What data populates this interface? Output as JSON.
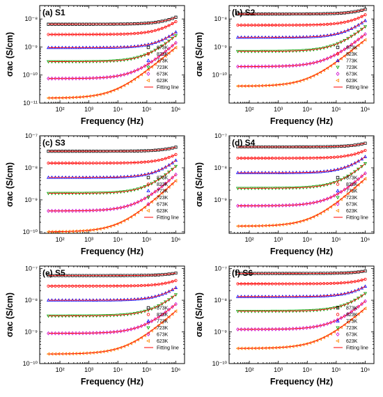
{
  "chart_data": [
    {
      "type": "scatter",
      "panel_label": "(a)  S1",
      "xlabel": "Frequency (Hz)",
      "ylabel": "σac (S/cm)",
      "xscale": "log",
      "yscale": "log",
      "xlim": [
        20,
        2000000
      ],
      "ylim": [
        1e-11,
        3e-08
      ],
      "xticks": [
        "10²",
        "10³",
        "10⁴",
        "10⁵",
        "10⁶"
      ],
      "yticks": [
        {
          "v": 1e-11,
          "t": "10⁻¹¹"
        },
        {
          "v": 1e-10,
          "t": "10⁻¹⁰"
        },
        {
          "v": 1e-09,
          "t": "10⁻⁹"
        },
        {
          "v": 1e-08,
          "t": "10⁻⁸"
        }
      ],
      "legend_position": "right",
      "series": [
        {
          "name": "873K",
          "sdc": 6.5e-09,
          "A": 1e-14,
          "n": 0.95
        },
        {
          "name": "823K",
          "sdc": 2.8e-09,
          "A": 9e-15,
          "n": 0.96
        },
        {
          "name": "773K",
          "sdc": 9.5e-10,
          "A": 3.2e-15,
          "n": 0.98
        },
        {
          "name": "723K",
          "sdc": 3e-10,
          "A": 4.5e-15,
          "n": 0.95
        },
        {
          "name": "673K",
          "sdc": 7.5e-11,
          "A": 3.5e-15,
          "n": 0.93
        },
        {
          "name": "623K",
          "sdc": 1.5e-11,
          "A": 6.5e-15,
          "n": 0.86
        }
      ],
      "fit_label": "Fitting line"
    },
    {
      "type": "scatter",
      "panel_label": "(b)  S2",
      "xlabel": "Frequency (Hz)",
      "ylabel": "σac (S/cm)",
      "xscale": "log",
      "yscale": "log",
      "xlim": [
        20,
        2000000
      ],
      "ylim": [
        1e-11,
        3e-08
      ],
      "xticks": [
        "10²",
        "10³",
        "10⁴",
        "10⁵",
        "10⁶"
      ],
      "yticks": [
        {
          "v": 1e-10,
          "t": "10⁻¹⁰"
        },
        {
          "v": 1e-09,
          "t": "10⁻⁹"
        },
        {
          "v": 1e-08,
          "t": "10⁻⁸"
        }
      ],
      "legend_position": "right",
      "series": [
        {
          "name": "873K",
          "sdc": 1.5e-08,
          "A": 1.4e-14,
          "n": 0.95
        },
        {
          "name": "823K",
          "sdc": 6e-09,
          "A": 1.4e-14,
          "n": 0.96
        },
        {
          "name": "773K",
          "sdc": 2.2e-09,
          "A": 1.3e-14,
          "n": 0.95
        },
        {
          "name": "723K",
          "sdc": 7e-10,
          "A": 1.6e-14,
          "n": 0.91
        },
        {
          "name": "673K",
          "sdc": 2e-10,
          "A": 1.4e-14,
          "n": 0.88
        },
        {
          "name": "623K",
          "sdc": 4e-11,
          "A": 1.4e-14,
          "n": 0.85
        }
      ],
      "fit_label": "Fitting line"
    },
    {
      "type": "scatter",
      "panel_label": "(c)  S3",
      "xlabel": "Frequency (Hz)",
      "ylabel": "σac (S/cm)",
      "xscale": "log",
      "yscale": "log",
      "xlim": [
        20,
        2000000
      ],
      "ylim": [
        9e-11,
        1e-07
      ],
      "xticks": [
        "10²",
        "10³",
        "10⁴",
        "10⁵",
        "10⁶"
      ],
      "yticks": [
        {
          "v": 1e-10,
          "t": "10⁻¹⁰"
        },
        {
          "v": 1e-09,
          "t": "10⁻⁹"
        },
        {
          "v": 1e-08,
          "t": "10⁻⁸"
        },
        {
          "v": 1e-07,
          "t": "10⁻⁷"
        }
      ],
      "legend_position": "right",
      "series": [
        {
          "name": "873K",
          "sdc": 3.3e-08,
          "A": 2.2e-14,
          "n": 0.95
        },
        {
          "name": "823K",
          "sdc": 1.4e-08,
          "A": 2.4e-14,
          "n": 0.95
        },
        {
          "name": "773K",
          "sdc": 5e-09,
          "A": 2.4e-14,
          "n": 0.95
        },
        {
          "name": "723K",
          "sdc": 1.6e-09,
          "A": 2.9e-14,
          "n": 0.92
        },
        {
          "name": "673K",
          "sdc": 4.5e-10,
          "A": 3e-14,
          "n": 0.88
        },
        {
          "name": "623K",
          "sdc": 1e-10,
          "A": 3.5e-14,
          "n": 0.84
        }
      ],
      "fit_label": "Fitting line"
    },
    {
      "type": "scatter",
      "panel_label": "(d)  S4",
      "xlabel": "Frequency (Hz)",
      "ylabel": "σac (S/cm)",
      "xscale": "log",
      "yscale": "log",
      "xlim": [
        20,
        2000000
      ],
      "ylim": [
        9e-11,
        1e-07
      ],
      "xticks": [
        "10²",
        "10³",
        "10⁴",
        "10⁵",
        "10⁶"
      ],
      "yticks": [
        {
          "v": 1e-09,
          "t": "10⁻⁹"
        },
        {
          "v": 1e-08,
          "t": "10⁻⁸"
        },
        {
          "v": 1e-07,
          "t": "10⁻⁷"
        }
      ],
      "legend_position": "right",
      "series": [
        {
          "name": "873K",
          "sdc": 4.5e-08,
          "A": 2.7e-14,
          "n": 0.95
        },
        {
          "name": "823K",
          "sdc": 2e-08,
          "A": 3e-14,
          "n": 0.95
        },
        {
          "name": "773K",
          "sdc": 7e-09,
          "A": 3.5e-14,
          "n": 0.94
        },
        {
          "name": "723K",
          "sdc": 2.3e-09,
          "A": 3.9e-14,
          "n": 0.91
        },
        {
          "name": "673K",
          "sdc": 6.5e-10,
          "A": 3.2e-14,
          "n": 0.88
        },
        {
          "name": "623K",
          "sdc": 1.5e-10,
          "A": 4.6e-14,
          "n": 0.83
        }
      ],
      "fit_label": "Fitting line"
    },
    {
      "type": "scatter",
      "panel_label": "(e)  S5",
      "xlabel": "Frequency (Hz)",
      "ylabel": "σac (S/cm)",
      "xscale": "log",
      "yscale": "log",
      "xlim": [
        20,
        2000000
      ],
      "ylim": [
        1e-10,
        1.2e-07
      ],
      "xticks": [
        "10²",
        "10³",
        "10⁴",
        "10⁵",
        "10⁶"
      ],
      "yticks": [
        {
          "v": 1e-10,
          "t": "10⁻¹⁰"
        },
        {
          "v": 1e-09,
          "t": "10⁻⁹"
        },
        {
          "v": 1e-08,
          "t": "10⁻⁸"
        },
        {
          "v": 1e-07,
          "t": "10⁻⁷"
        }
      ],
      "legend_position": "right",
      "series": [
        {
          "name": "873K",
          "sdc": 6e-08,
          "A": 2.4e-14,
          "n": 0.95
        },
        {
          "name": "823K",
          "sdc": 2.8e-08,
          "A": 2.8e-14,
          "n": 0.95
        },
        {
          "name": "773K",
          "sdc": 1e-08,
          "A": 3.4e-14,
          "n": 0.94
        },
        {
          "name": "723K",
          "sdc": 3.2e-09,
          "A": 5.4e-14,
          "n": 0.89
        },
        {
          "name": "673K",
          "sdc": 9e-10,
          "A": 4.6e-14,
          "n": 0.86
        },
        {
          "name": "623K",
          "sdc": 2e-10,
          "A": 5.2e-14,
          "n": 0.82
        }
      ],
      "fit_label": "Fitting line"
    },
    {
      "type": "scatter",
      "panel_label": "(f)  S6",
      "xlabel": "Frequency (Hz)",
      "ylabel": "σac (S/cm)",
      "xscale": "log",
      "yscale": "log",
      "xlim": [
        20,
        2000000
      ],
      "ylim": [
        1e-10,
        1.2e-07
      ],
      "xticks": [
        "10²",
        "10³",
        "10⁴",
        "10⁵",
        "10⁶"
      ],
      "yticks": [
        {
          "v": 1e-10,
          "t": "10⁻¹⁰"
        },
        {
          "v": 1e-09,
          "t": "10⁻⁹"
        },
        {
          "v": 1e-08,
          "t": "10⁻⁸"
        },
        {
          "v": 1e-07,
          "t": "10⁻⁷"
        }
      ],
      "legend_position": "right",
      "series": [
        {
          "name": "873K",
          "sdc": 7e-08,
          "A": 2.7e-14,
          "n": 0.95
        },
        {
          "name": "823K",
          "sdc": 3.3e-08,
          "A": 2.6e-14,
          "n": 0.95
        },
        {
          "name": "773K",
          "sdc": 1.3e-08,
          "A": 3.8e-14,
          "n": 0.93
        },
        {
          "name": "723K",
          "sdc": 4.5e-09,
          "A": 4.1e-14,
          "n": 0.91
        },
        {
          "name": "673K",
          "sdc": 1.2e-09,
          "A": 5.6e-14,
          "n": 0.86
        },
        {
          "name": "623K",
          "sdc": 3e-10,
          "A": 7.2e-14,
          "n": 0.81
        }
      ],
      "fit_label": "Fitting line"
    }
  ],
  "style": {
    "series_colors": [
      "#000000",
      "#ff0000",
      "#0000ff",
      "#00a000",
      "#cc00cc",
      "#ff8800"
    ],
    "series_markers": [
      "square",
      "circle",
      "triangle-up",
      "triangle-down",
      "diamond",
      "triangle-left"
    ],
    "fit_color": "#ff0000"
  }
}
